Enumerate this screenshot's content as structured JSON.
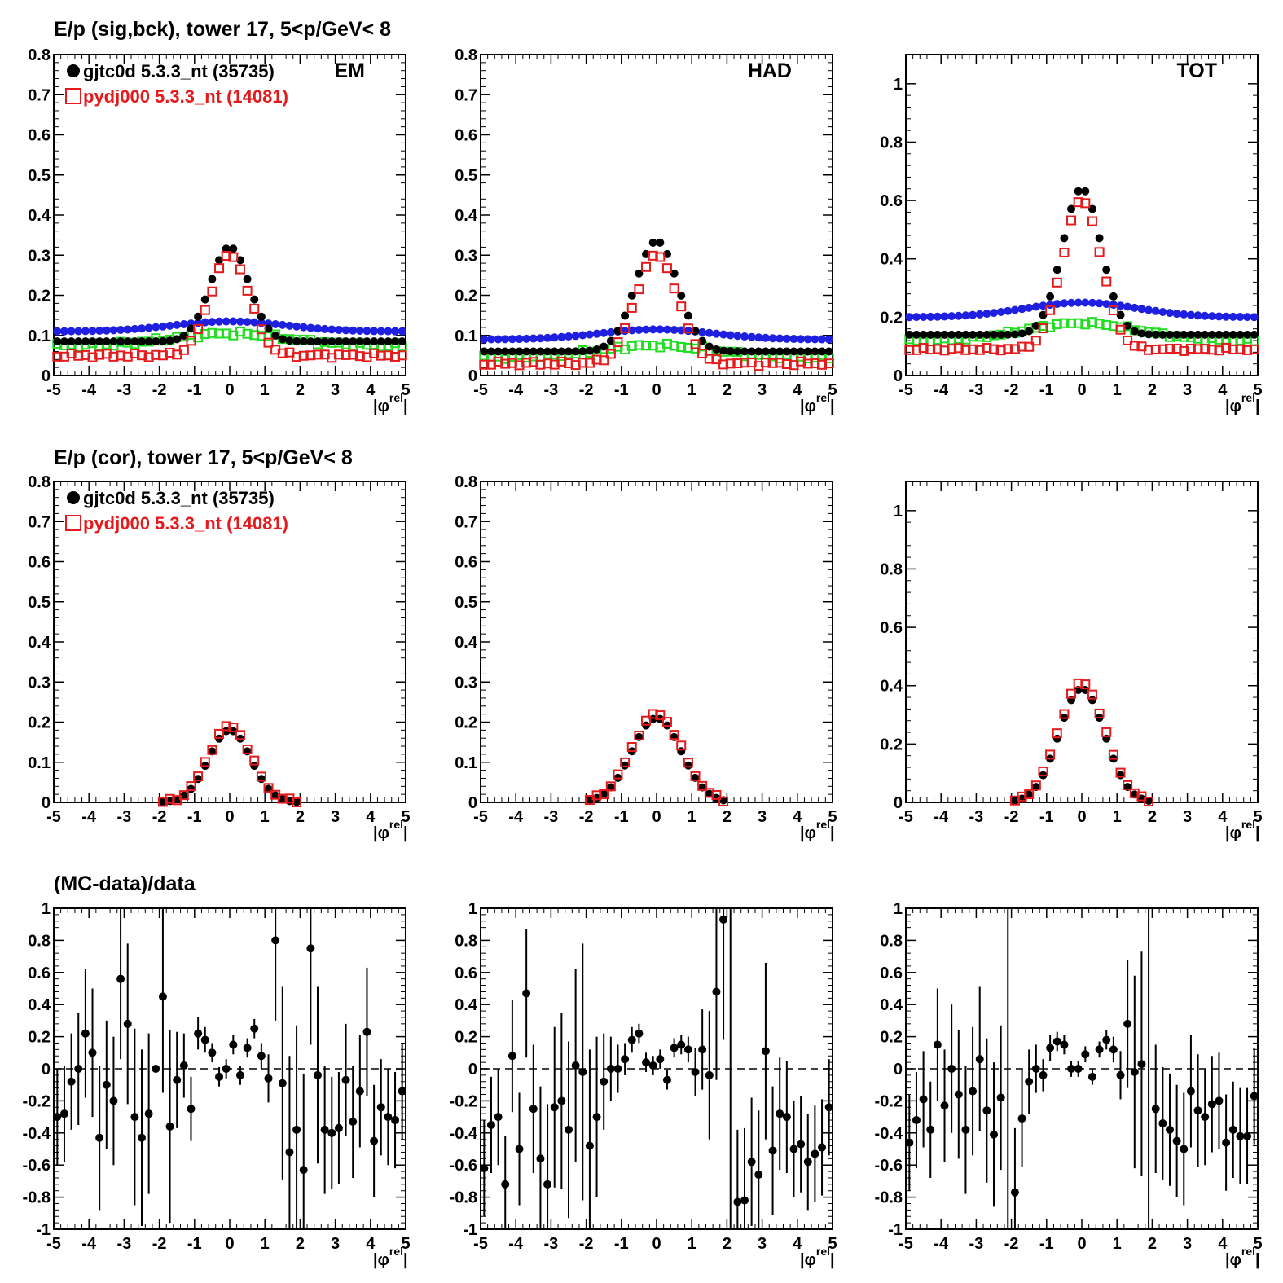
{
  "rows": [
    {
      "title": "E/p (sig,bck), tower 17,  5<p/GeV< 8",
      "show_legend": true
    },
    {
      "title": "E/p (cor), tower 17,  5<p/GeV< 8",
      "show_legend": true
    },
    {
      "title": "(MC-data)/data",
      "show_legend": false
    }
  ],
  "legend": [
    {
      "label": "gjtc0d 5.3.3_nt (35735)",
      "color": "#000000",
      "marker": "filled-circle"
    },
    {
      "label": "pydj000 5.3.3_nt (14081)",
      "color": "#e41a1c",
      "marker": "open-square"
    }
  ],
  "colors": {
    "data": "#000000",
    "mc": "#e41a1c",
    "bck_data": "#1f1fe0",
    "bck_mc": "#22dd22"
  },
  "x_axis": {
    "label_main": "|φ",
    "label_sup": "rel",
    "label_end": "|",
    "ticks": [
      "-5",
      "-4",
      "-3",
      "-2",
      "-1",
      "0",
      "1",
      "2",
      "3",
      "4",
      "5"
    ]
  },
  "chart_data": [
    {
      "type": "scatter",
      "row": 0,
      "panel": "EM",
      "label": "EM",
      "xlim": [
        -5,
        5
      ],
      "ylim": [
        0,
        0.8
      ],
      "yticks": [
        "0",
        "0.1",
        "0.2",
        "0.3",
        "0.4",
        "0.5",
        "0.6",
        "0.7",
        "0.8"
      ],
      "peak": {
        "data": 0.32,
        "mc": 0.3,
        "sigma": 0.55
      },
      "tails": {
        "data": 0.085,
        "mc": 0.05,
        "bck_data": 0.11,
        "bck_data_peak": 0.135,
        "bck_mc": 0.075,
        "bck_mc_peak": 0.105
      },
      "series": [
        {
          "name": "gjtc0d 5.3.3_nt (35735)",
          "key": "data"
        },
        {
          "name": "pydj000 5.3.3_nt (14081)",
          "key": "mc"
        },
        {
          "key": "bck_data"
        },
        {
          "key": "bck_mc"
        }
      ]
    },
    {
      "type": "scatter",
      "row": 0,
      "panel": "HAD",
      "label": "HAD",
      "xlim": [
        -5,
        5
      ],
      "ylim": [
        0,
        0.8
      ],
      "yticks": [
        "0",
        "0.1",
        "0.2",
        "0.3",
        "0.4",
        "0.5",
        "0.6",
        "0.7",
        "0.8"
      ],
      "peak": {
        "data": 0.335,
        "mc": 0.3,
        "sigma": 0.6
      },
      "tails": {
        "data": 0.06,
        "mc": 0.03,
        "bck_data": 0.09,
        "bck_data_peak": 0.115,
        "bck_mc": 0.045,
        "bck_mc_peak": 0.075
      },
      "series": [
        {
          "name": "gjtc0d 5.3.3_nt (35735)",
          "key": "data"
        },
        {
          "name": "pydj000 5.3.3_nt (14081)",
          "key": "mc"
        },
        {
          "key": "bck_data"
        },
        {
          "key": "bck_mc"
        }
      ]
    },
    {
      "type": "scatter",
      "row": 0,
      "panel": "TOT",
      "label": "TOT",
      "xlim": [
        -5,
        5
      ],
      "ylim": [
        0,
        1.1
      ],
      "yticks": [
        "0",
        "0.2",
        "0.4",
        "0.6",
        "0.8",
        "1"
      ],
      "ytick_values": [
        0,
        0.2,
        0.4,
        0.6,
        0.8,
        1.0
      ],
      "peak": {
        "data": 0.64,
        "mc": 0.6,
        "sigma": 0.55
      },
      "tails": {
        "data": 0.14,
        "mc": 0.09,
        "bck_data": 0.2,
        "bck_data_peak": 0.25,
        "bck_mc": 0.12,
        "bck_mc_peak": 0.18
      },
      "series": [
        {
          "name": "gjtc0d 5.3.3_nt (35735)",
          "key": "data"
        },
        {
          "name": "pydj000 5.3.3_nt (14081)",
          "key": "mc"
        },
        {
          "key": "bck_data"
        },
        {
          "key": "bck_mc"
        }
      ]
    },
    {
      "type": "scatter",
      "row": 1,
      "panel": "EM",
      "label": "",
      "xlim": [
        -5,
        5
      ],
      "ylim": [
        0,
        0.8
      ],
      "yticks": [
        "0",
        "0.1",
        "0.2",
        "0.3",
        "0.4",
        "0.5",
        "0.6",
        "0.7",
        "0.8"
      ],
      "peak": {
        "data": 0.18,
        "mc": 0.19,
        "sigma": 0.6
      },
      "series": [
        {
          "name": "gjtc0d 5.3.3_nt (35735)",
          "key": "data"
        },
        {
          "name": "pydj000 5.3.3_nt (14081)",
          "key": "mc"
        }
      ]
    },
    {
      "type": "scatter",
      "row": 1,
      "panel": "HAD",
      "label": "",
      "xlim": [
        -5,
        5
      ],
      "ylim": [
        0,
        0.8
      ],
      "yticks": [
        "0",
        "0.1",
        "0.2",
        "0.3",
        "0.4",
        "0.5",
        "0.6",
        "0.7",
        "0.8"
      ],
      "peak": {
        "data": 0.21,
        "mc": 0.22,
        "sigma": 0.7
      },
      "series": [
        {
          "name": "gjtc0d 5.3.3_nt (35735)",
          "key": "data"
        },
        {
          "name": "pydj000 5.3.3_nt (14081)",
          "key": "mc"
        }
      ]
    },
    {
      "type": "scatter",
      "row": 1,
      "panel": "TOT",
      "label": "",
      "xlim": [
        -5,
        5
      ],
      "ylim": [
        0,
        1.1
      ],
      "yticks": [
        "0",
        "0.2",
        "0.4",
        "0.6",
        "0.8",
        "1"
      ],
      "ytick_values": [
        0,
        0.2,
        0.4,
        0.6,
        0.8,
        1.0
      ],
      "peak": {
        "data": 0.39,
        "mc": 0.41,
        "sigma": 0.65
      },
      "series": [
        {
          "name": "gjtc0d 5.3.3_nt (35735)",
          "key": "data"
        },
        {
          "name": "pydj000 5.3.3_nt (14081)",
          "key": "mc"
        }
      ]
    },
    {
      "type": "scatter",
      "row": 2,
      "panel": "EM",
      "label": "",
      "xlim": [
        -5,
        5
      ],
      "ylim": [
        -1,
        1
      ],
      "yticks": [
        "-1",
        "-0.8",
        "-0.6",
        "-0.4",
        "-0.2",
        "0",
        "0.2",
        "0.4",
        "0.6",
        "0.8",
        "1"
      ],
      "ytick_values": [
        -1,
        -0.8,
        -0.6,
        -0.4,
        -0.2,
        0,
        0.2,
        0.4,
        0.6,
        0.8,
        1
      ],
      "ratio": {
        "points": [
          [
            -4.9,
            -0.3,
            0.3
          ],
          [
            -4.7,
            -0.28,
            0.3
          ],
          [
            -4.5,
            -0.08,
            0.3
          ],
          [
            -4.3,
            0.0,
            0.35
          ],
          [
            -4.1,
            0.22,
            0.4
          ],
          [
            -3.9,
            0.1,
            0.4
          ],
          [
            -3.7,
            -0.43,
            0.45
          ],
          [
            -3.5,
            -0.1,
            0.4
          ],
          [
            -3.3,
            -0.2,
            0.4
          ],
          [
            -3.1,
            0.56,
            0.5
          ],
          [
            -2.9,
            0.28,
            0.5
          ],
          [
            -2.7,
            -0.3,
            0.55
          ],
          [
            -2.5,
            -0.43,
            0.55
          ],
          [
            -2.3,
            -0.28,
            0.5
          ],
          [
            -2.1,
            0.0,
            0.0
          ],
          [
            -1.9,
            0.45,
            0.6
          ],
          [
            -1.7,
            -0.36,
            0.6
          ],
          [
            -1.5,
            -0.07,
            0.3
          ],
          [
            -1.3,
            0.02,
            0.2
          ],
          [
            -1.1,
            -0.25,
            0.2
          ],
          [
            -0.9,
            0.22,
            0.1
          ],
          [
            -0.7,
            0.18,
            0.08
          ],
          [
            -0.5,
            0.1,
            0.06
          ],
          [
            -0.3,
            -0.05,
            0.06
          ],
          [
            -0.1,
            0.0,
            0.06
          ],
          [
            0.1,
            0.15,
            0.06
          ],
          [
            0.3,
            -0.04,
            0.06
          ],
          [
            0.5,
            0.13,
            0.06
          ],
          [
            0.7,
            0.25,
            0.06
          ],
          [
            0.9,
            0.08,
            0.08
          ],
          [
            1.1,
            -0.06,
            0.15
          ],
          [
            1.3,
            0.8,
            0.5
          ],
          [
            1.5,
            -0.09,
            0.6
          ],
          [
            1.7,
            -0.52,
            0.6
          ],
          [
            1.9,
            -0.38,
            0.65
          ],
          [
            2.1,
            -0.63,
            0.6
          ],
          [
            2.3,
            0.75,
            0.6
          ],
          [
            2.5,
            -0.04,
            0.55
          ],
          [
            2.7,
            -0.38,
            0.4
          ],
          [
            2.9,
            -0.4,
            0.35
          ],
          [
            3.1,
            -0.37,
            0.35
          ],
          [
            3.3,
            -0.07,
            0.35
          ],
          [
            3.5,
            -0.33,
            0.35
          ],
          [
            3.7,
            -0.14,
            0.35
          ],
          [
            3.9,
            0.23,
            0.4
          ],
          [
            4.1,
            -0.45,
            0.35
          ],
          [
            4.3,
            -0.24,
            0.3
          ],
          [
            4.5,
            -0.3,
            0.3
          ],
          [
            4.7,
            -0.32,
            0.3
          ],
          [
            4.9,
            -0.14,
            0.3
          ]
        ]
      }
    },
    {
      "type": "scatter",
      "row": 2,
      "panel": "HAD",
      "label": "",
      "xlim": [
        -5,
        5
      ],
      "ylim": [
        -1,
        1
      ],
      "yticks": [
        "-1",
        "-0.8",
        "-0.6",
        "-0.4",
        "-0.2",
        "0",
        "0.2",
        "0.4",
        "0.6",
        "0.8",
        "1"
      ],
      "ytick_values": [
        -1,
        -0.8,
        -0.6,
        -0.4,
        -0.2,
        0,
        0.2,
        0.4,
        0.6,
        0.8,
        1
      ],
      "ratio": {
        "points": [
          [
            -4.9,
            -0.62,
            0.3
          ],
          [
            -4.7,
            -0.35,
            0.3
          ],
          [
            -4.5,
            -0.3,
            0.3
          ],
          [
            -4.3,
            -0.72,
            0.3
          ],
          [
            -4.1,
            0.08,
            0.35
          ],
          [
            -3.9,
            -0.5,
            0.35
          ],
          [
            -3.7,
            0.47,
            0.4
          ],
          [
            -3.5,
            -0.25,
            0.4
          ],
          [
            -3.3,
            -0.56,
            0.45
          ],
          [
            -3.1,
            -0.72,
            0.5
          ],
          [
            -2.9,
            -0.24,
            0.5
          ],
          [
            -2.7,
            -0.2,
            0.55
          ],
          [
            -2.5,
            -0.38,
            0.55
          ],
          [
            -2.3,
            0.02,
            0.6
          ],
          [
            -2.1,
            -0.02,
            0.8
          ],
          [
            -1.9,
            -0.48,
            0.6
          ],
          [
            -1.7,
            -0.3,
            0.5
          ],
          [
            -1.5,
            -0.08,
            0.3
          ],
          [
            -1.3,
            0.0,
            0.2
          ],
          [
            -1.1,
            0.0,
            0.15
          ],
          [
            -0.9,
            0.06,
            0.1
          ],
          [
            -0.7,
            0.18,
            0.08
          ],
          [
            -0.5,
            0.22,
            0.06
          ],
          [
            -0.3,
            0.04,
            0.06
          ],
          [
            -0.1,
            0.02,
            0.06
          ],
          [
            0.1,
            0.06,
            0.06
          ],
          [
            0.3,
            -0.07,
            0.06
          ],
          [
            0.5,
            0.13,
            0.06
          ],
          [
            0.7,
            0.15,
            0.06
          ],
          [
            0.9,
            0.12,
            0.08
          ],
          [
            1.1,
            -0.02,
            0.15
          ],
          [
            1.3,
            0.12,
            0.25
          ],
          [
            1.5,
            -0.04,
            0.4
          ],
          [
            1.7,
            0.48,
            0.55
          ],
          [
            1.9,
            0.93,
            0.75
          ],
          [
            2.1,
            null,
            0
          ],
          [
            2.3,
            -0.83,
            0.45
          ],
          [
            2.5,
            -0.82,
            0.45
          ],
          [
            2.7,
            -0.58,
            0.4
          ],
          [
            2.9,
            -0.66,
            0.4
          ],
          [
            3.1,
            0.11,
            0.55
          ],
          [
            3.3,
            -0.51,
            0.4
          ],
          [
            3.5,
            -0.28,
            0.35
          ],
          [
            3.7,
            -0.3,
            0.35
          ],
          [
            3.9,
            -0.5,
            0.3
          ],
          [
            4.1,
            -0.47,
            0.3
          ],
          [
            4.3,
            -0.58,
            0.3
          ],
          [
            4.5,
            -0.53,
            0.3
          ],
          [
            4.7,
            -0.49,
            0.3
          ],
          [
            4.9,
            -0.24,
            0.3
          ]
        ]
      }
    },
    {
      "type": "scatter",
      "row": 2,
      "panel": "TOT",
      "label": "",
      "xlim": [
        -5,
        5
      ],
      "ylim": [
        -1,
        1
      ],
      "yticks": [
        "-1",
        "-0.8",
        "-0.6",
        "-0.4",
        "-0.2",
        "0",
        "0.2",
        "0.4",
        "0.6",
        "0.8",
        "1"
      ],
      "ytick_values": [
        -1,
        -0.8,
        -0.6,
        -0.4,
        -0.2,
        0,
        0.2,
        0.4,
        0.6,
        0.8,
        1
      ],
      "ratio": {
        "points": [
          [
            -4.9,
            -0.46,
            0.3
          ],
          [
            -4.7,
            -0.32,
            0.3
          ],
          [
            -4.5,
            -0.19,
            0.3
          ],
          [
            -4.3,
            -0.38,
            0.3
          ],
          [
            -4.1,
            0.15,
            0.35
          ],
          [
            -3.9,
            -0.23,
            0.35
          ],
          [
            -3.7,
            0.0,
            0.4
          ],
          [
            -3.5,
            -0.16,
            0.4
          ],
          [
            -3.3,
            -0.38,
            0.4
          ],
          [
            -3.1,
            -0.14,
            0.4
          ],
          [
            -2.9,
            0.06,
            0.45
          ],
          [
            -2.7,
            -0.26,
            0.45
          ],
          [
            -2.5,
            -0.41,
            0.45
          ],
          [
            -2.3,
            -0.18,
            0.45
          ],
          [
            -2.1,
            null,
            0
          ],
          [
            -1.9,
            -0.77,
            0.4
          ],
          [
            -1.7,
            -0.31,
            0.3
          ],
          [
            -1.5,
            -0.08,
            0.2
          ],
          [
            -1.3,
            0.0,
            0.15
          ],
          [
            -1.1,
            -0.04,
            0.1
          ],
          [
            -0.9,
            0.13,
            0.08
          ],
          [
            -0.7,
            0.17,
            0.06
          ],
          [
            -0.5,
            0.15,
            0.06
          ],
          [
            -0.3,
            0.0,
            0.05
          ],
          [
            -0.1,
            0.0,
            0.05
          ],
          [
            0.1,
            0.09,
            0.05
          ],
          [
            0.3,
            -0.05,
            0.05
          ],
          [
            0.5,
            0.12,
            0.05
          ],
          [
            0.7,
            0.18,
            0.06
          ],
          [
            0.9,
            0.12,
            0.08
          ],
          [
            1.1,
            -0.04,
            0.15
          ],
          [
            1.3,
            0.28,
            0.4
          ],
          [
            1.5,
            -0.02,
            0.6
          ],
          [
            1.7,
            0.03,
            0.7
          ],
          [
            1.9,
            null,
            0
          ],
          [
            2.1,
            -0.25,
            0.4
          ],
          [
            2.3,
            -0.34,
            0.35
          ],
          [
            2.5,
            -0.38,
            0.35
          ],
          [
            2.7,
            -0.45,
            0.35
          ],
          [
            2.9,
            -0.5,
            0.35
          ],
          [
            3.1,
            -0.14,
            0.35
          ],
          [
            3.3,
            -0.26,
            0.35
          ],
          [
            3.5,
            -0.3,
            0.3
          ],
          [
            3.7,
            -0.22,
            0.3
          ],
          [
            3.9,
            -0.2,
            0.3
          ],
          [
            4.1,
            -0.46,
            0.3
          ],
          [
            4.3,
            -0.38,
            0.3
          ],
          [
            4.5,
            -0.42,
            0.3
          ],
          [
            4.7,
            -0.42,
            0.3
          ],
          [
            4.9,
            -0.17,
            0.3
          ]
        ]
      }
    }
  ]
}
